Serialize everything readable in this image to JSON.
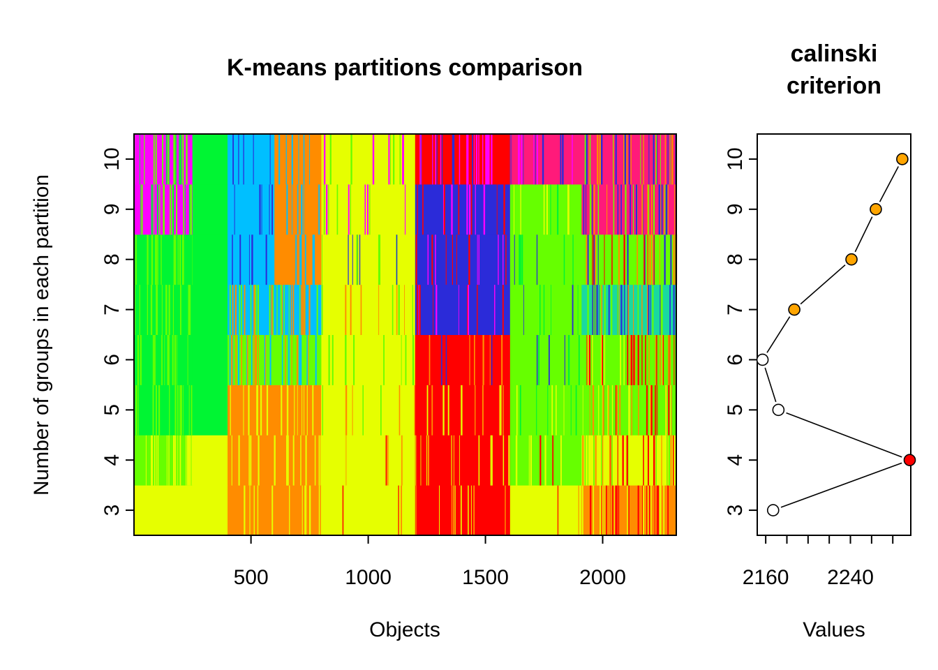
{
  "chart_data": [
    {
      "type": "heatmap",
      "title": "K-means partitions comparison",
      "xlabel": "Objects",
      "ylabel": "Number of groups in each partition",
      "xlim": [
        1,
        2314
      ],
      "x_ticks": [
        500,
        1000,
        1500,
        2000
      ],
      "y_categories": [
        3,
        4,
        5,
        6,
        7,
        8,
        9,
        10
      ],
      "palette": {
        "yellow": "#e6ff00",
        "orange": "#ff8c00",
        "red": "#ff0000",
        "green": "#00f533",
        "lime": "#66ff00",
        "sky": "#00bfff",
        "blue": "#2b2bd9",
        "magenta": "#ff00ff",
        "pink": "#ff1a7a",
        "teal": "#19d9a0"
      },
      "rows": [
        {
          "k": 3,
          "segments": [
            {
              "from": 1,
              "to": 400,
              "base": "yellow"
            },
            {
              "from": 400,
              "to": 800,
              "base": "orange",
              "mix": [
                "yellow"
              ],
              "density": 0.15
            },
            {
              "from": 800,
              "to": 1200,
              "base": "yellow",
              "mix": [
                "orange",
                "red"
              ],
              "density": 0.04
            },
            {
              "from": 1200,
              "to": 1605,
              "base": "red",
              "mix": [
                "orange",
                "yellow"
              ],
              "density": 0.12
            },
            {
              "from": 1605,
              "to": 1910,
              "base": "yellow",
              "mix": [
                "red",
                "orange"
              ],
              "density": 0.03
            },
            {
              "from": 1910,
              "to": 2314,
              "base": "orange",
              "mix": [
                "red",
                "yellow"
              ],
              "density": 0.45
            }
          ]
        },
        {
          "k": 4,
          "segments": [
            {
              "from": 1,
              "to": 250,
              "base": "lime",
              "mix": [
                "yellow"
              ],
              "density": 0.35
            },
            {
              "from": 250,
              "to": 400,
              "base": "yellow"
            },
            {
              "from": 400,
              "to": 800,
              "base": "orange",
              "mix": [
                "yellow"
              ],
              "density": 0.2
            },
            {
              "from": 800,
              "to": 1200,
              "base": "yellow",
              "mix": [
                "orange",
                "red"
              ],
              "density": 0.05
            },
            {
              "from": 1200,
              "to": 1605,
              "base": "red",
              "mix": [
                "orange",
                "yellow"
              ],
              "density": 0.15
            },
            {
              "from": 1605,
              "to": 1910,
              "base": "lime",
              "mix": [
                "yellow",
                "red"
              ],
              "density": 0.12
            },
            {
              "from": 1910,
              "to": 2314,
              "base": "yellow",
              "mix": [
                "orange",
                "red",
                "lime"
              ],
              "density": 0.35
            }
          ]
        },
        {
          "k": 5,
          "segments": [
            {
              "from": 1,
              "to": 250,
              "base": "green",
              "mix": [
                "lime"
              ],
              "density": 0.3
            },
            {
              "from": 250,
              "to": 400,
              "base": "green"
            },
            {
              "from": 400,
              "to": 800,
              "base": "orange",
              "mix": [
                "yellow"
              ],
              "density": 0.2
            },
            {
              "from": 800,
              "to": 1200,
              "base": "yellow",
              "mix": [
                "lime",
                "orange"
              ],
              "density": 0.08
            },
            {
              "from": 1200,
              "to": 1605,
              "base": "red",
              "mix": [
                "orange",
                "yellow"
              ],
              "density": 0.12
            },
            {
              "from": 1605,
              "to": 1910,
              "base": "lime",
              "mix": [
                "yellow",
                "green"
              ],
              "density": 0.15
            },
            {
              "from": 1910,
              "to": 2314,
              "base": "lime",
              "mix": [
                "orange",
                "yellow",
                "red"
              ],
              "density": 0.35
            }
          ]
        },
        {
          "k": 6,
          "segments": [
            {
              "from": 1,
              "to": 250,
              "base": "green",
              "mix": [
                "lime"
              ],
              "density": 0.3
            },
            {
              "from": 250,
              "to": 400,
              "base": "green"
            },
            {
              "from": 400,
              "to": 800,
              "base": "lime",
              "mix": [
                "orange",
                "sky"
              ],
              "density": 0.35
            },
            {
              "from": 800,
              "to": 1200,
              "base": "yellow",
              "mix": [
                "lime"
              ],
              "density": 0.12
            },
            {
              "from": 1200,
              "to": 1605,
              "base": "red",
              "mix": [
                "blue",
                "orange"
              ],
              "density": 0.1
            },
            {
              "from": 1605,
              "to": 1910,
              "base": "lime",
              "mix": [
                "green",
                "blue"
              ],
              "density": 0.1
            },
            {
              "from": 1910,
              "to": 2314,
              "base": "lime",
              "mix": [
                "orange",
                "red",
                "yellow"
              ],
              "density": 0.35
            }
          ]
        },
        {
          "k": 7,
          "segments": [
            {
              "from": 1,
              "to": 250,
              "base": "green",
              "mix": [
                "lime"
              ],
              "density": 0.3
            },
            {
              "from": 250,
              "to": 400,
              "base": "green"
            },
            {
              "from": 400,
              "to": 800,
              "base": "sky",
              "mix": [
                "orange",
                "lime"
              ],
              "density": 0.4
            },
            {
              "from": 800,
              "to": 1200,
              "base": "yellow",
              "mix": [
                "lime",
                "orange"
              ],
              "density": 0.12
            },
            {
              "from": 1200,
              "to": 1605,
              "base": "blue",
              "mix": [
                "red",
                "magenta"
              ],
              "density": 0.15
            },
            {
              "from": 1605,
              "to": 1910,
              "base": "lime",
              "mix": [
                "green",
                "blue"
              ],
              "density": 0.1
            },
            {
              "from": 1910,
              "to": 2314,
              "base": "teal",
              "mix": [
                "lime",
                "orange",
                "blue"
              ],
              "density": 0.4
            }
          ]
        },
        {
          "k": 8,
          "segments": [
            {
              "from": 1,
              "to": 250,
              "base": "green",
              "mix": [
                "lime"
              ],
              "density": 0.3
            },
            {
              "from": 250,
              "to": 400,
              "base": "green"
            },
            {
              "from": 400,
              "to": 600,
              "base": "sky",
              "mix": [
                "blue"
              ],
              "density": 0.15
            },
            {
              "from": 600,
              "to": 800,
              "base": "orange",
              "mix": [
                "sky"
              ],
              "density": 0.15
            },
            {
              "from": 800,
              "to": 1200,
              "base": "yellow",
              "mix": [
                "lime",
                "blue"
              ],
              "density": 0.12
            },
            {
              "from": 1200,
              "to": 1605,
              "base": "blue",
              "mix": [
                "red",
                "magenta"
              ],
              "density": 0.15
            },
            {
              "from": 1605,
              "to": 1910,
              "base": "lime",
              "mix": [
                "green",
                "blue"
              ],
              "density": 0.12
            },
            {
              "from": 1910,
              "to": 2314,
              "base": "lime",
              "mix": [
                "blue",
                "orange",
                "red"
              ],
              "density": 0.4
            }
          ]
        },
        {
          "k": 9,
          "segments": [
            {
              "from": 1,
              "to": 250,
              "base": "magenta",
              "mix": [
                "lime",
                "green"
              ],
              "density": 0.35
            },
            {
              "from": 250,
              "to": 400,
              "base": "green"
            },
            {
              "from": 400,
              "to": 600,
              "base": "sky",
              "mix": [
                "blue"
              ],
              "density": 0.15
            },
            {
              "from": 600,
              "to": 800,
              "base": "orange",
              "mix": [
                "sky"
              ],
              "density": 0.15
            },
            {
              "from": 800,
              "to": 1200,
              "base": "yellow",
              "mix": [
                "lime",
                "magenta"
              ],
              "density": 0.12
            },
            {
              "from": 1200,
              "to": 1605,
              "base": "blue",
              "mix": [
                "red",
                "magenta"
              ],
              "density": 0.15
            },
            {
              "from": 1605,
              "to": 1910,
              "base": "lime",
              "mix": [
                "green",
                "yellow"
              ],
              "density": 0.12
            },
            {
              "from": 1910,
              "to": 2314,
              "base": "pink",
              "mix": [
                "blue",
                "orange",
                "lime"
              ],
              "density": 0.4
            }
          ]
        },
        {
          "k": 10,
          "segments": [
            {
              "from": 1,
              "to": 250,
              "base": "magenta",
              "mix": [
                "lime",
                "green"
              ],
              "density": 0.35
            },
            {
              "from": 250,
              "to": 400,
              "base": "green"
            },
            {
              "from": 400,
              "to": 600,
              "base": "sky",
              "mix": [
                "blue"
              ],
              "density": 0.15
            },
            {
              "from": 600,
              "to": 800,
              "base": "orange",
              "mix": [
                "sky"
              ],
              "density": 0.15
            },
            {
              "from": 800,
              "to": 1200,
              "base": "yellow",
              "mix": [
                "lime",
                "magenta"
              ],
              "density": 0.12
            },
            {
              "from": 1200,
              "to": 1605,
              "base": "red",
              "mix": [
                "blue",
                "magenta"
              ],
              "density": 0.3
            },
            {
              "from": 1605,
              "to": 1910,
              "base": "pink",
              "mix": [
                "blue",
                "magenta"
              ],
              "density": 0.2
            },
            {
              "from": 1910,
              "to": 2314,
              "base": "pink",
              "mix": [
                "blue",
                "orange",
                "lime"
              ],
              "density": 0.4
            }
          ]
        }
      ]
    },
    {
      "type": "line",
      "title": "calinski\ncriterion",
      "title_lines": [
        "calinski",
        "criterion"
      ],
      "xlabel": "Values",
      "ylabel": "",
      "xlim": [
        2152,
        2297
      ],
      "ylim": [
        2.5,
        10.5
      ],
      "x_tick_labels": [
        2160,
        2240
      ],
      "x_minor_ticks": [
        2160,
        2180,
        2200,
        2220,
        2240,
        2260,
        2280,
        2300
      ],
      "y_ticks": [
        3,
        4,
        5,
        6,
        7,
        8,
        9,
        10
      ],
      "points": [
        {
          "k": 3,
          "value": 2167,
          "color": "white"
        },
        {
          "k": 4,
          "value": 2296,
          "color": "#ff0000"
        },
        {
          "k": 5,
          "value": 2172,
          "color": "white"
        },
        {
          "k": 6,
          "value": 2157,
          "color": "white"
        },
        {
          "k": 7,
          "value": 2187,
          "color": "#ffa500"
        },
        {
          "k": 8,
          "value": 2241,
          "color": "#ffa500"
        },
        {
          "k": 9,
          "value": 2264,
          "color": "#ffa500"
        },
        {
          "k": 10,
          "value": 2289,
          "color": "#ffa500"
        }
      ]
    }
  ]
}
